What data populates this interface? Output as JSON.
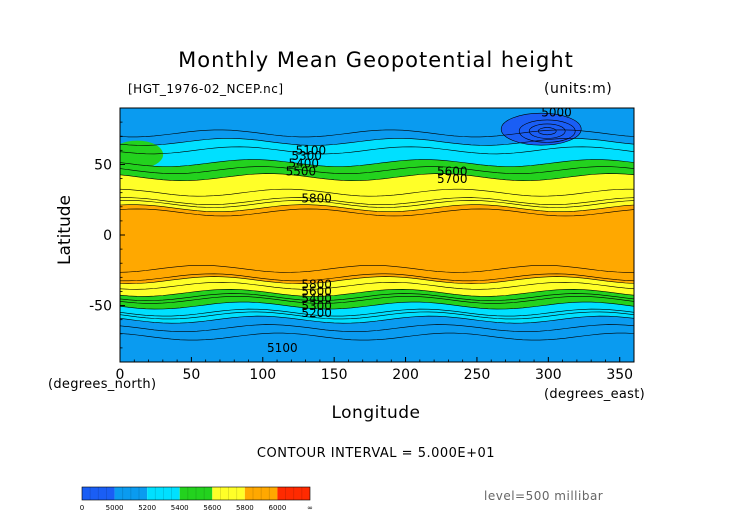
{
  "chart_data": {
    "type": "heatmap",
    "title": "Monthly Mean Geopotential height",
    "source_file": "[HGT_1976-02_NCEP.nc]",
    "units": "(units:m)",
    "xlabel": "Longitude",
    "ylabel": "Latitude",
    "x_unit": "(degrees_east)",
    "y_unit": "(degrees_north)",
    "xlim": [
      0,
      360
    ],
    "ylim": [
      -90,
      90
    ],
    "x_ticks": [
      0,
      50,
      100,
      150,
      200,
      250,
      300,
      350
    ],
    "y_ticks": [
      -50,
      0,
      50
    ],
    "contour_interval_text": "CONTOUR INTERVAL = 5.000E+01",
    "level_text": "level=500 millibar",
    "contour_labels": [
      {
        "value": "5000",
        "lon": 295,
        "lat": 84
      },
      {
        "value": "5100",
        "lon": 123,
        "lat": 57
      },
      {
        "value": "5300",
        "lon": 120,
        "lat": 53
      },
      {
        "value": "5400",
        "lon": 118,
        "lat": 48
      },
      {
        "value": "5500",
        "lon": 116,
        "lat": 42
      },
      {
        "value": "5600",
        "lon": 222,
        "lat": 42
      },
      {
        "value": "5700",
        "lon": 222,
        "lat": 37
      },
      {
        "value": "5800",
        "lon": 127,
        "lat": 23
      },
      {
        "value": "5800",
        "lon": 127,
        "lat": -38
      },
      {
        "value": "5600",
        "lon": 127,
        "lat": -43
      },
      {
        "value": "5400",
        "lon": 127,
        "lat": -48
      },
      {
        "value": "5300",
        "lon": 127,
        "lat": -53
      },
      {
        "value": "5200",
        "lon": 127,
        "lat": -58
      },
      {
        "value": "5100",
        "lon": 103,
        "lat": -83
      }
    ],
    "colorbar": {
      "ticks": [
        "0",
        "5000",
        "5200",
        "5400",
        "5600",
        "5800",
        "6000",
        "∞"
      ],
      "levels": [
        {
          "from": 0,
          "to": 5000,
          "color": "#1a5ef5"
        },
        {
          "from": 5000,
          "to": 5200,
          "color": "#0a9bf0"
        },
        {
          "from": 5200,
          "to": 5400,
          "color": "#00e0ff"
        },
        {
          "from": 5400,
          "to": 5600,
          "color": "#23d21e"
        },
        {
          "from": 5600,
          "to": 5800,
          "color": "#ffff28"
        },
        {
          "from": 5800,
          "to": 6000,
          "color": "#ffa800"
        },
        {
          "from": 6000,
          "to": 99999,
          "color": "#ff2a00"
        }
      ]
    },
    "field_bands": [
      {
        "color": "#0a9bf0",
        "lat_top": 90,
        "lat_bottom": 66
      },
      {
        "color": "#00e0ff",
        "lat_top": 66,
        "lat_bottom": 51
      },
      {
        "color": "#23d21e",
        "lat_top": 51,
        "lat_bottom": 41
      },
      {
        "color": "#ffff28",
        "lat_top": 41,
        "lat_bottom": 19
      },
      {
        "color": "#ffa800",
        "lat_top": 19,
        "lat_bottom": -32
      },
      {
        "color": "#ffff28",
        "lat_top": -32,
        "lat_bottom": -41
      },
      {
        "color": "#23d21e",
        "lat_top": -41,
        "lat_bottom": -50
      },
      {
        "color": "#00e0ff",
        "lat_top": -50,
        "lat_bottom": -60
      },
      {
        "color": "#0a9bf0",
        "lat_top": -60,
        "lat_bottom": -90
      }
    ],
    "low_center": {
      "color": "#1a5ef5",
      "lon": 295,
      "lat": 75
    },
    "green_anomaly": {
      "color": "#23d21e",
      "lon": 12,
      "lat": 57
    }
  }
}
